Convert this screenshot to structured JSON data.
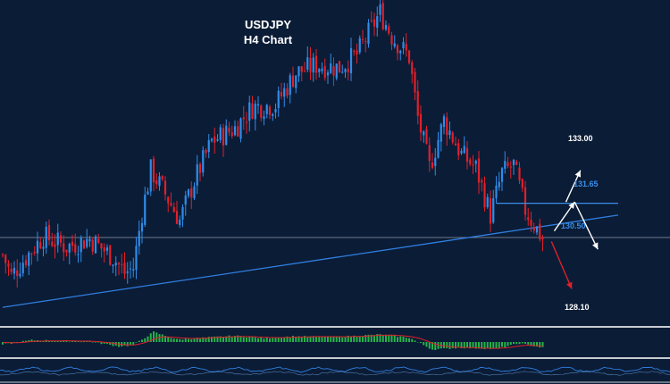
{
  "chart_data": {
    "type": "candlestick",
    "title_line1": "USDJPY",
    "title_line2": "H4 Chart",
    "colors": {
      "background": "#0b1c36",
      "bull": "#2f8ce8",
      "bear": "#e0202a",
      "trendline": "#2f7fe0",
      "level_line": "#3a8ee8",
      "arrow_up": "#ffffff",
      "arrow_down": "#e0202a",
      "hist_pos": "#27b34a",
      "hist_neg": "#27b34a",
      "signal": "#e0202a",
      "separator": "#c8ccd2",
      "lower_osc": "#2f7fe0"
    },
    "levels": [
      {
        "label": "133.00",
        "value": 133.0,
        "style": "target-up"
      },
      {
        "label": "131.65",
        "value": 131.65,
        "style": "resistance"
      },
      {
        "label": "130.50",
        "value": 130.5,
        "style": "support"
      },
      {
        "label": "128.10",
        "value": 128.1,
        "style": "target-down"
      }
    ],
    "anchors": [
      {
        "i": 0,
        "v": 129.7
      },
      {
        "i": 3,
        "v": 128.9
      },
      {
        "i": 8,
        "v": 129.6
      },
      {
        "i": 14,
        "v": 130.4
      },
      {
        "i": 22,
        "v": 130.0
      },
      {
        "i": 30,
        "v": 130.3
      },
      {
        "i": 38,
        "v": 129.6
      },
      {
        "i": 42,
        "v": 129.0
      },
      {
        "i": 45,
        "v": 129.2
      },
      {
        "i": 48,
        "v": 131.3
      },
      {
        "i": 51,
        "v": 132.9
      },
      {
        "i": 55,
        "v": 132.2
      },
      {
        "i": 61,
        "v": 131.0
      },
      {
        "i": 66,
        "v": 132.5
      },
      {
        "i": 72,
        "v": 134.0
      },
      {
        "i": 80,
        "v": 134.5
      },
      {
        "i": 86,
        "v": 135.3
      },
      {
        "i": 94,
        "v": 135.4
      },
      {
        "i": 101,
        "v": 136.6
      },
      {
        "i": 108,
        "v": 136.9
      },
      {
        "i": 116,
        "v": 136.8
      },
      {
        "i": 122,
        "v": 137.3
      },
      {
        "i": 126,
        "v": 138.1
      },
      {
        "i": 130,
        "v": 138.9
      },
      {
        "i": 134,
        "v": 138.0
      },
      {
        "i": 140,
        "v": 137.2
      },
      {
        "i": 143,
        "v": 134.9
      },
      {
        "i": 147,
        "v": 133.0
      },
      {
        "i": 152,
        "v": 134.8
      },
      {
        "i": 158,
        "v": 133.5
      },
      {
        "i": 163,
        "v": 133.0
      },
      {
        "i": 168,
        "v": 131.2
      },
      {
        "i": 172,
        "v": 132.8
      },
      {
        "i": 176,
        "v": 133.1
      },
      {
        "i": 180,
        "v": 131.4
      },
      {
        "i": 186,
        "v": 130.3
      }
    ],
    "macd_anchors": [
      {
        "i": 0,
        "v": -0.2
      },
      {
        "i": 10,
        "v": 0.15
      },
      {
        "i": 20,
        "v": 0.1
      },
      {
        "i": 30,
        "v": 0.05
      },
      {
        "i": 40,
        "v": -0.35
      },
      {
        "i": 45,
        "v": -0.25
      },
      {
        "i": 52,
        "v": 0.8
      },
      {
        "i": 60,
        "v": 0.2
      },
      {
        "i": 70,
        "v": 0.35
      },
      {
        "i": 80,
        "v": 0.5
      },
      {
        "i": 90,
        "v": 0.3
      },
      {
        "i": 100,
        "v": 0.45
      },
      {
        "i": 115,
        "v": 0.4
      },
      {
        "i": 130,
        "v": 0.6
      },
      {
        "i": 140,
        "v": 0.35
      },
      {
        "i": 148,
        "v": -0.6
      },
      {
        "i": 158,
        "v": -0.45
      },
      {
        "i": 170,
        "v": -0.55
      },
      {
        "i": 178,
        "v": -0.1
      },
      {
        "i": 186,
        "v": -0.45
      }
    ],
    "candle_count": 187,
    "price_range": [
      127.5,
      139.2
    ],
    "trendline": [
      {
        "i": 0,
        "v": 127.7
      },
      {
        "i": 212,
        "v": 131.2
      }
    ],
    "resistance_segment": {
      "from_i": 170,
      "to_i": 212,
      "v": 131.65
    },
    "horizontal_line": {
      "v": 130.35
    },
    "arrows": [
      {
        "from_i": 194,
        "from_v": 131.7,
        "to_i": 199,
        "to_v": 132.9,
        "color": "arrow_up"
      },
      {
        "from_i": 190,
        "from_v": 130.6,
        "to_i": 197,
        "to_v": 131.7,
        "color": "arrow_up"
      },
      {
        "from_i": 197,
        "from_v": 131.7,
        "to_i": 205,
        "to_v": 129.9,
        "color": "arrow_up"
      },
      {
        "from_i": 189,
        "from_v": 130.2,
        "to_i": 196,
        "to_v": 128.4,
        "color": "arrow_down"
      }
    ]
  }
}
